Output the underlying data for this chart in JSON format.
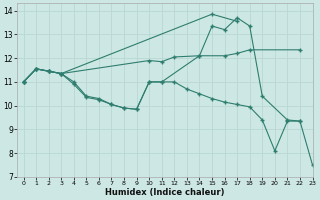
{
  "xlabel": "Humidex (Indice chaleur)",
  "bg_color": "#cde8e4",
  "grid_color": "#b8d8d4",
  "line_color": "#2e7d6e",
  "xlim": [
    -0.5,
    23
  ],
  "ylim": [
    7,
    14.3
  ],
  "series": [
    {
      "x": [
        0,
        1,
        2,
        3,
        10,
        11,
        12,
        14,
        16,
        17,
        18,
        22
      ],
      "y": [
        11.0,
        11.55,
        11.45,
        11.35,
        11.9,
        11.85,
        12.05,
        12.1,
        12.1,
        12.2,
        12.35,
        12.35
      ]
    },
    {
      "x": [
        0,
        1,
        2,
        3,
        4,
        5,
        6,
        7,
        8,
        9,
        10,
        11,
        14,
        15,
        16,
        17,
        18,
        19,
        21,
        22
      ],
      "y": [
        11.0,
        11.55,
        11.45,
        11.35,
        11.0,
        10.4,
        10.3,
        10.05,
        9.9,
        9.85,
        11.0,
        11.0,
        12.1,
        13.35,
        13.2,
        13.7,
        13.35,
        10.4,
        9.4,
        9.35
      ]
    },
    {
      "x": [
        0,
        1,
        2,
        3,
        15,
        17
      ],
      "y": [
        11.0,
        11.55,
        11.45,
        11.35,
        13.85,
        13.55
      ]
    },
    {
      "x": [
        0,
        1,
        2,
        3,
        4,
        5,
        6,
        7,
        8,
        9,
        10,
        11,
        12,
        13,
        14,
        15,
        16,
        17,
        18,
        19,
        20,
        21,
        22,
        23
      ],
      "y": [
        11.0,
        11.55,
        11.45,
        11.35,
        10.9,
        10.35,
        10.25,
        10.05,
        9.9,
        9.85,
        11.0,
        11.0,
        11.0,
        10.7,
        10.5,
        10.3,
        10.15,
        10.05,
        9.95,
        9.4,
        8.1,
        9.35,
        9.35,
        7.5
      ]
    }
  ],
  "yticks": [
    7,
    8,
    9,
    10,
    11,
    12,
    13,
    14
  ],
  "xticks": [
    0,
    1,
    2,
    3,
    4,
    5,
    6,
    7,
    8,
    9,
    10,
    11,
    12,
    13,
    14,
    15,
    16,
    17,
    18,
    19,
    20,
    21,
    22,
    23
  ],
  "xtick_labels": [
    "0",
    "1",
    "2",
    "3",
    "4",
    "5",
    "6",
    "7",
    "8",
    "9",
    "10",
    "11",
    "12",
    "13",
    "14",
    "15",
    "16",
    "17",
    "18",
    "19",
    "20",
    "21",
    "22",
    "23"
  ]
}
